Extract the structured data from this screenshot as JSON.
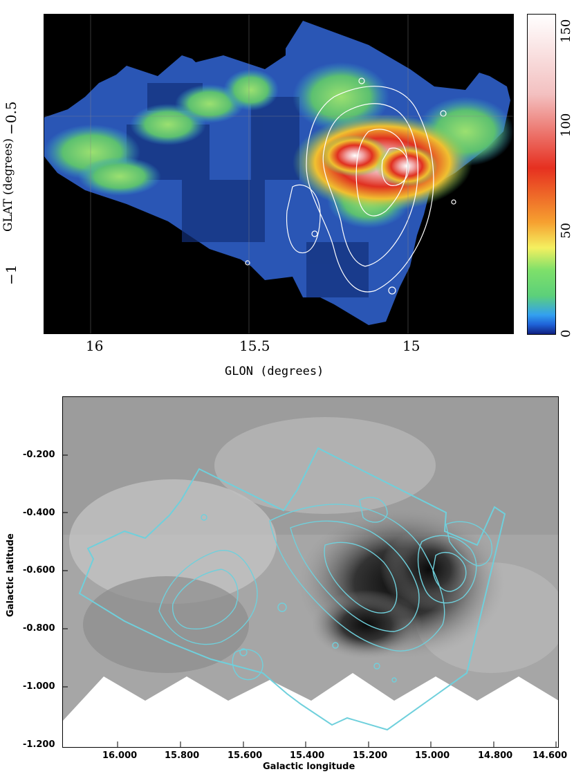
{
  "top_panel": {
    "xlabel": "GLON (degrees)",
    "ylabel": "GLAT (degrees)",
    "x_ticks": [
      "16",
      "15.5",
      "15"
    ],
    "y_ticks": [
      "−0.5",
      "−1"
    ],
    "colorbar_ticks": [
      "150",
      "100",
      "50",
      "0"
    ]
  },
  "bottom_panel": {
    "xlabel": "Galactic longitude",
    "ylabel": "Galactic latitude",
    "x_ticks": [
      "16.000",
      "15.800",
      "15.600",
      "15.400",
      "15.200",
      "15.000",
      "14.800",
      "14.600"
    ],
    "y_ticks": [
      "-0.200",
      "-0.400",
      "-0.600",
      "-0.800",
      "-1.000",
      "-1.200"
    ]
  },
  "colors": {
    "contour_top": "#ffffff",
    "contour_bottom": "#6fd0dc",
    "colorbar": [
      "#102080",
      "#1f63d8",
      "#33a0f0",
      "#5cd07a",
      "#7ee06a",
      "#f4f060",
      "#f6a030",
      "#e63020",
      "#f3c0c0",
      "#ffffff"
    ]
  }
}
